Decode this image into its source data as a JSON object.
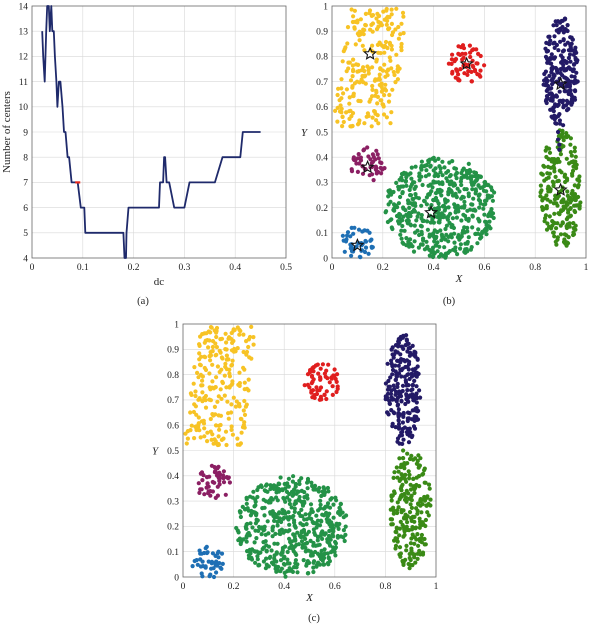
{
  "chart_data": [
    {
      "id": "a",
      "type": "line",
      "caption": "(a)",
      "xlabel": "dc",
      "ylabel": "Number of centers",
      "xlim": [
        0,
        0.5
      ],
      "ylim": [
        4,
        14
      ],
      "xticks": [
        "0",
        "0.1",
        "0.2",
        "0.3",
        "0.4",
        "0.5"
      ],
      "yticks": [
        "4",
        "5",
        "6",
        "7",
        "8",
        "9",
        "10",
        "11",
        "12",
        "13",
        "14"
      ],
      "grid": true,
      "colors": {
        "line": "#1f2a6b",
        "highlight": "#e8291c"
      },
      "x": [
        0.02,
        0.022,
        0.025,
        0.028,
        0.03,
        0.033,
        0.035,
        0.038,
        0.04,
        0.043,
        0.045,
        0.048,
        0.05,
        0.053,
        0.056,
        0.06,
        0.063,
        0.066,
        0.07,
        0.073,
        0.078,
        0.083,
        0.09,
        0.096,
        0.1,
        0.103,
        0.105,
        0.11,
        0.12,
        0.15,
        0.18,
        0.182,
        0.185,
        0.186,
        0.19,
        0.2,
        0.25,
        0.252,
        0.258,
        0.26,
        0.262,
        0.265,
        0.27,
        0.28,
        0.3,
        0.31,
        0.34,
        0.36,
        0.375,
        0.39,
        0.41,
        0.415,
        0.45
      ],
      "y": [
        13,
        12,
        11,
        13,
        14,
        14,
        13,
        14,
        13,
        13,
        12,
        11,
        10,
        11,
        11,
        10,
        9,
        9,
        8,
        8,
        7,
        7,
        7,
        6,
        6,
        6,
        5,
        5,
        5,
        5,
        5,
        4,
        4,
        5,
        6,
        6,
        6,
        7,
        7,
        8,
        8,
        7,
        7,
        6,
        6,
        7,
        7,
        7,
        8,
        8,
        8,
        9,
        9
      ],
      "highlight_x": [
        0.085,
        0.095
      ],
      "highlight_y": [
        7,
        7
      ]
    },
    {
      "id": "b",
      "type": "scatter",
      "caption": "(b)",
      "xlabel": "X",
      "ylabel": "Y",
      "xlim": [
        0,
        1
      ],
      "ylim": [
        0,
        1
      ],
      "xticks": [
        "0",
        "0.2",
        "0.4",
        "0.6",
        "0.8",
        "1"
      ],
      "yticks": [
        "0",
        "0.1",
        "0.2",
        "0.3",
        "0.4",
        "0.5",
        "0.6",
        "0.7",
        "0.8",
        "0.9",
        "1"
      ],
      "grid": true,
      "clusters": [
        {
          "color": "#f7c325",
          "shape": "rect",
          "x": [
            0.0,
            0.3
          ],
          "y": [
            0.52,
            0.99
          ],
          "tilt": 0.45,
          "n": 240,
          "center": [
            0.15,
            0.81
          ]
        },
        {
          "color": "#e01e1e",
          "shape": "ellipse",
          "cx": 0.53,
          "cy": 0.77,
          "rx": 0.07,
          "ry": 0.08,
          "n": 60,
          "center": [
            0.53,
            0.77
          ]
        },
        {
          "color": "#231a66",
          "shape": "ellipse",
          "cx": 0.9,
          "cy": 0.74,
          "rx": 0.07,
          "ry": 0.22,
          "n": 230,
          "center": [
            0.9,
            0.69
          ]
        },
        {
          "color": "#8b1f63",
          "shape": "ellipse",
          "cx": 0.14,
          "cy": 0.37,
          "rx": 0.07,
          "ry": 0.07,
          "n": 50,
          "center": [
            0.14,
            0.36
          ]
        },
        {
          "color": "#249247",
          "shape": "ellipse",
          "cx": 0.43,
          "cy": 0.2,
          "rx": 0.22,
          "ry": 0.2,
          "n": 520,
          "center": [
            0.39,
            0.18
          ]
        },
        {
          "color": "#3a8a16",
          "shape": "ellipse",
          "cx": 0.9,
          "cy": 0.27,
          "rx": 0.08,
          "ry": 0.24,
          "n": 220,
          "center": [
            0.9,
            0.27
          ]
        },
        {
          "color": "#1e6fb4",
          "shape": "ellipse",
          "cx": 0.1,
          "cy": 0.06,
          "rx": 0.065,
          "ry": 0.065,
          "n": 45,
          "center": [
            0.1,
            0.05
          ]
        }
      ],
      "bridge": {
        "color": "#231a66",
        "x": [
          0.89,
          0.89,
          0.895,
          0.895
        ],
        "y": [
          0.5,
          0.47,
          0.45,
          0.43
        ]
      }
    },
    {
      "id": "c",
      "type": "scatter",
      "caption": "(c)",
      "xlabel": "X",
      "ylabel": "Y",
      "xlim": [
        0,
        1
      ],
      "ylim": [
        0,
        1
      ],
      "xticks": [
        "0",
        "0.2",
        "0.4",
        "0.6",
        "0.8",
        "1"
      ],
      "yticks": [
        "0",
        "0.1",
        "0.2",
        "0.3",
        "0.4",
        "0.5",
        "0.6",
        "0.7",
        "0.8",
        "0.9",
        "1"
      ],
      "grid": true,
      "clusters": [
        {
          "color": "#f7c325",
          "shape": "rect",
          "x": [
            0.0,
            0.3
          ],
          "y": [
            0.52,
            0.99
          ],
          "tilt": 0.45,
          "n": 240
        },
        {
          "color": "#e01e1e",
          "shape": "ellipse",
          "cx": 0.55,
          "cy": 0.77,
          "rx": 0.07,
          "ry": 0.075,
          "n": 60
        },
        {
          "color": "#231a66",
          "shape": "ellipse",
          "cx": 0.87,
          "cy": 0.74,
          "rx": 0.07,
          "ry": 0.22,
          "n": 230
        },
        {
          "color": "#8b1f63",
          "shape": "ellipse",
          "cx": 0.12,
          "cy": 0.37,
          "rx": 0.07,
          "ry": 0.07,
          "n": 50
        },
        {
          "color": "#249247",
          "shape": "ellipse",
          "cx": 0.43,
          "cy": 0.2,
          "rx": 0.22,
          "ry": 0.2,
          "n": 520
        },
        {
          "color": "#3a8a16",
          "shape": "ellipse",
          "cx": 0.9,
          "cy": 0.27,
          "rx": 0.08,
          "ry": 0.24,
          "n": 220
        },
        {
          "color": "#1e6fb4",
          "shape": "ellipse",
          "cx": 0.1,
          "cy": 0.06,
          "rx": 0.065,
          "ry": 0.065,
          "n": 45
        }
      ],
      "bridge": {
        "color": "#3a8a16",
        "x": [
          0.87,
          0.87,
          0.875,
          0.875
        ],
        "y": [
          0.5,
          0.47,
          0.45,
          0.43
        ]
      }
    }
  ]
}
